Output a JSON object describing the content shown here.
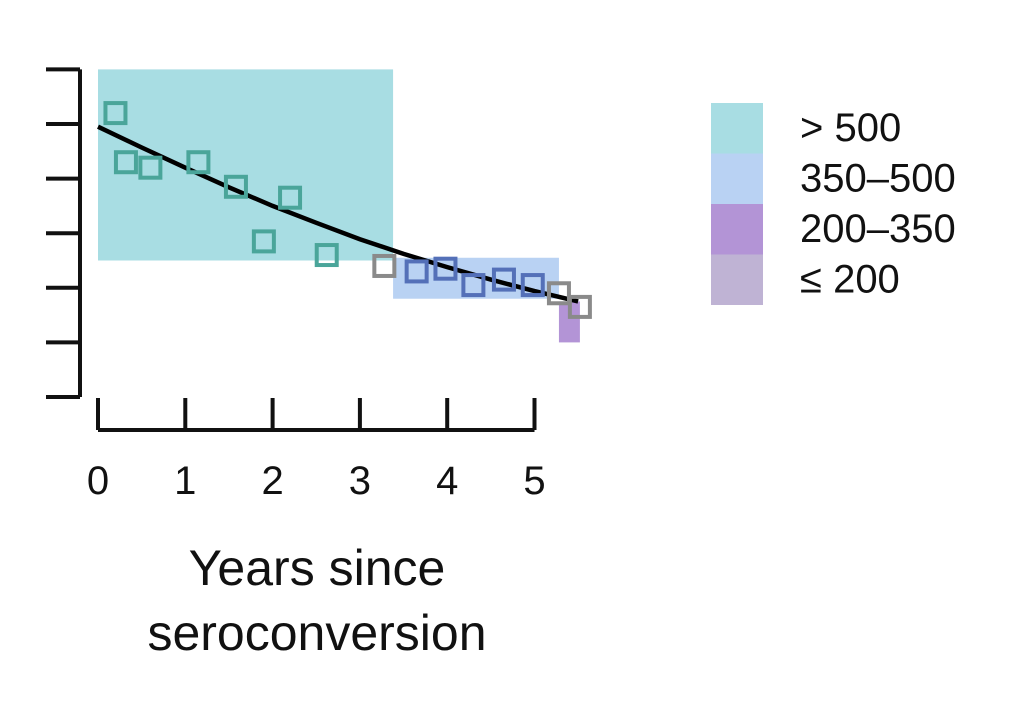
{
  "chart_data": {
    "type": "scatter",
    "title": "",
    "xlabel": "Years since seroconversion",
    "ylabel": "",
    "xlim": [
      -0.1,
      5.7
    ],
    "ylim": [
      0,
      6
    ],
    "x_ticks": [
      0,
      1,
      2,
      3,
      4,
      5
    ],
    "x_tick_labels": [
      "0",
      "1",
      "2",
      "3",
      "4",
      "5"
    ],
    "y_ticks": [
      0,
      1,
      2,
      3,
      4,
      5,
      6
    ],
    "y_tick_labels": [
      "",
      "",
      "",
      "",
      "",
      "",
      ""
    ],
    "legend": {
      "placement": "right",
      "entries": [
        {
          "label": "> 500",
          "color": "#a8dde3"
        },
        {
          "label": "350–500",
          "color": "#b9d2f3"
        },
        {
          "label": "200–350",
          "color": "#b394d6"
        },
        {
          "label": "≤ 200",
          "color": "#bfb3d4"
        }
      ]
    },
    "category_bands": [
      {
        "category": "> 500",
        "x": [
          0.0,
          3.38
        ],
        "y": [
          2.5,
          6.0
        ],
        "color": "#a8dde3"
      },
      {
        "category": "350–500",
        "x": [
          3.38,
          5.28
        ],
        "y": [
          1.8,
          2.55
        ],
        "color": "#b9d2f3"
      },
      {
        "category": "200–350",
        "x": [
          5.28,
          5.52
        ],
        "y": [
          1.0,
          1.75
        ],
        "color": "#b394d6"
      }
    ],
    "points": [
      {
        "x": 0.2,
        "y": 5.2,
        "category": "> 500"
      },
      {
        "x": 0.32,
        "y": 4.3,
        "category": "> 500"
      },
      {
        "x": 0.6,
        "y": 4.2,
        "category": "> 500"
      },
      {
        "x": 1.15,
        "y": 4.3,
        "category": "> 500"
      },
      {
        "x": 1.58,
        "y": 3.85,
        "category": "> 500"
      },
      {
        "x": 1.9,
        "y": 2.85,
        "category": "> 500"
      },
      {
        "x": 2.2,
        "y": 3.65,
        "category": "> 500"
      },
      {
        "x": 2.62,
        "y": 2.6,
        "category": "> 500"
      },
      {
        "x": 3.28,
        "y": 2.4,
        "category": "borderline"
      },
      {
        "x": 3.65,
        "y": 2.3,
        "category": "350–500"
      },
      {
        "x": 3.98,
        "y": 2.35,
        "category": "350–500"
      },
      {
        "x": 4.3,
        "y": 2.05,
        "category": "350–500"
      },
      {
        "x": 4.65,
        "y": 2.15,
        "category": "350–500"
      },
      {
        "x": 4.98,
        "y": 2.05,
        "category": "350–500"
      },
      {
        "x": 5.28,
        "y": 1.9,
        "category": "borderline"
      },
      {
        "x": 5.52,
        "y": 1.65,
        "category": "borderline"
      }
    ],
    "marker_colors": {
      "> 500": "#4aa59a",
      "350–500": "#5470b8",
      "borderline": "#8a8a8a"
    },
    "fit_curve": {
      "x": [
        0.0,
        0.5,
        1.0,
        1.5,
        2.0,
        2.5,
        3.0,
        3.5,
        4.0,
        4.5,
        5.0,
        5.5
      ],
      "y": [
        4.95,
        4.57,
        4.2,
        3.84,
        3.5,
        3.19,
        2.89,
        2.62,
        2.38,
        2.15,
        1.94,
        1.75
      ]
    }
  }
}
